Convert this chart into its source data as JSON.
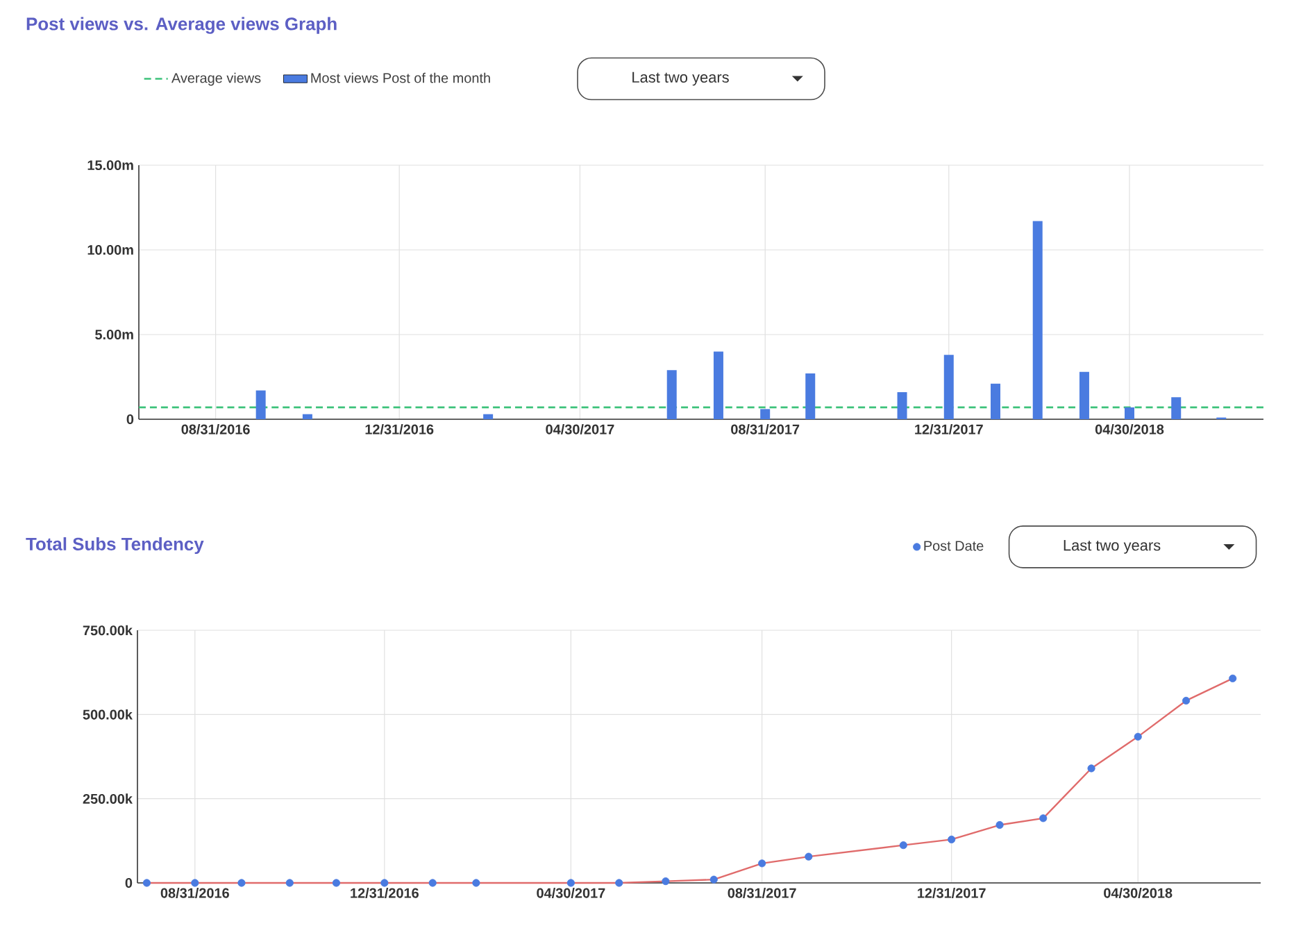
{
  "chart_data": [
    {
      "type": "bar",
      "title": "Post views vs. Average views Graph",
      "annotations": [
        "Last two years"
      ],
      "x": [
        "2016-09-30",
        "2016-10-31",
        "2017-02-28",
        "2017-06-30",
        "2017-07-31",
        "2017-08-31",
        "2017-09-30",
        "2017-11-30",
        "2017-12-31",
        "2018-01-31",
        "2018-02-28",
        "2018-03-31",
        "2018-04-30",
        "2018-05-31",
        "2018-06-30"
      ],
      "series": [
        {
          "name": "Most views Post of the month",
          "color": "#4a7be0",
          "values": [
            1.7,
            0.3,
            0.3,
            2.9,
            4.0,
            0.6,
            2.7,
            1.6,
            3.8,
            2.1,
            11.7,
            2.8,
            0.7,
            1.3,
            0.1
          ]
        }
      ],
      "ref_lines": [
        {
          "axis": "y",
          "value": 0.7,
          "label": "Average views",
          "color": "#3cc27a",
          "line_style": "dashed"
        }
      ],
      "xlim": [
        "2016-07-11",
        "2018-07-28"
      ],
      "ylim": [
        0,
        15
      ],
      "xticks": [
        {
          "value": "2016-08-31",
          "label": "08/31/2016"
        },
        {
          "value": "2016-12-31",
          "label": "12/31/2016"
        },
        {
          "value": "2017-04-30",
          "label": "04/30/2017"
        },
        {
          "value": "2017-08-31",
          "label": "08/31/2017"
        },
        {
          "value": "2017-12-31",
          "label": "12/31/2017"
        },
        {
          "value": "2018-04-30",
          "label": "04/30/2018"
        }
      ],
      "yticks": [
        0,
        {
          "value": 5,
          "label": "5.00m"
        },
        {
          "value": 10,
          "label": "10.00m"
        },
        {
          "value": 15,
          "label": "15.00m"
        }
      ],
      "grid": true,
      "legend": "top left"
    },
    {
      "type": "line",
      "title": "Total Subs Tendency",
      "annotations": [
        "Last two years"
      ],
      "x": [
        "2016-07-31",
        "2016-08-31",
        "2016-09-30",
        "2016-10-31",
        "2016-11-30",
        "2016-12-31",
        "2017-01-31",
        "2017-02-28",
        "2017-04-30",
        "2017-05-31",
        "2017-06-30",
        "2017-07-31",
        "2017-08-31",
        "2017-09-30",
        "2017-11-30",
        "2017-12-31",
        "2018-01-31",
        "2018-02-28",
        "2018-03-31",
        "2018-04-30",
        "2018-05-31",
        "2018-06-30"
      ],
      "series": [
        {
          "color": "#e06b6b",
          "marker": "none",
          "values": [
            0,
            0,
            0,
            0,
            0,
            0,
            0,
            0,
            0,
            0,
            5,
            10,
            58,
            78,
            112,
            129,
            172,
            192,
            340,
            434,
            541,
            607
          ]
        },
        {
          "type": "scatter",
          "name": "Post Date",
          "color": "#4a7be0",
          "marker": "circle",
          "values": [
            0,
            0,
            0,
            0,
            0,
            0,
            0,
            0,
            0,
            0,
            5,
            10,
            58,
            78,
            112,
            129,
            172,
            192,
            340,
            434,
            541,
            607
          ]
        }
      ],
      "xlim": [
        "2016-07-25",
        "2018-07-18"
      ],
      "ylim": [
        0,
        750
      ],
      "xticks": [
        {
          "value": "2016-08-31",
          "label": "08/31/2016"
        },
        {
          "value": "2016-12-31",
          "label": "12/31/2016"
        },
        {
          "value": "2017-04-30",
          "label": "04/30/2017"
        },
        {
          "value": "2017-08-31",
          "label": "08/31/2017"
        },
        {
          "value": "2017-12-31",
          "label": "12/31/2017"
        },
        {
          "value": "2018-04-30",
          "label": "04/30/2018"
        }
      ],
      "yticks": [
        0,
        {
          "value": 250,
          "label": "250.00k"
        },
        {
          "value": 500,
          "label": "500.00k"
        },
        {
          "value": 750,
          "label": "750.00k"
        }
      ],
      "grid": true,
      "legend": "top right"
    }
  ]
}
